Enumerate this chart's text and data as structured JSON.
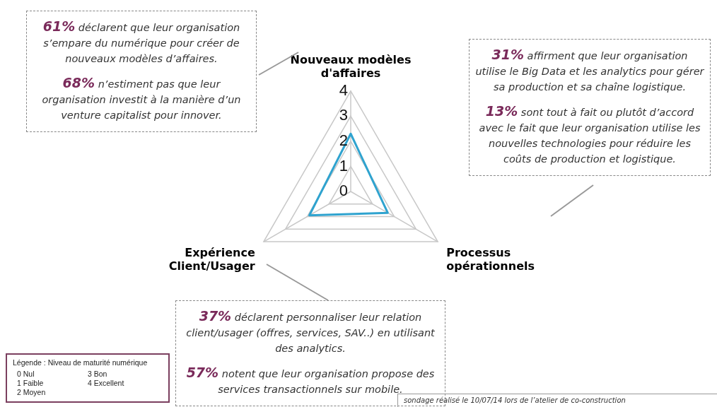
{
  "chart_data": {
    "type": "radar",
    "categories": [
      "Nouveaux modèles d'affaires",
      "Processus opérationnels",
      "Expérience Client/Usager"
    ],
    "series": [
      {
        "color": "#2fa3cf",
        "values": [
          2.3,
          1.7,
          1.9
        ]
      }
    ],
    "ylim": [
      0,
      4
    ],
    "yticks": [
      0,
      1,
      2,
      3,
      4
    ],
    "grid": true,
    "legend": false,
    "marker": "none",
    "annotations": [
      "61% déclarent que leur organisation s’empare du numérique pour créer de nouveaux modèles d’affaires.",
      "68% n’estiment pas que leur organisation investit  à la manière d’un venture capitalist pour innover.",
      "31% affirment que leur organisation utilise le Big Data et les analytics pour gérer sa production et sa chaîne logistique.",
      "13% sont tout à fait ou plutôt d’accord avec le fait que leur organisation utilise les nouvelles technologies pour réduire les coûts de production et logistique.",
      "37% déclarent personnaliser leur relation client/usager (offres, services, SAV..) en utilisant des analytics.",
      "57% notent que leur organisation propose des services transactionnels sur mobile.",
      "Légende : Niveau de maturité numérique",
      "0 Nul",
      "1 Faible",
      "2 Moyen",
      "3 Bon",
      "4 Excellent",
      "sondage réalisé  le 10/07/14 lors de l’atelier de co-construction"
    ]
  }
}
